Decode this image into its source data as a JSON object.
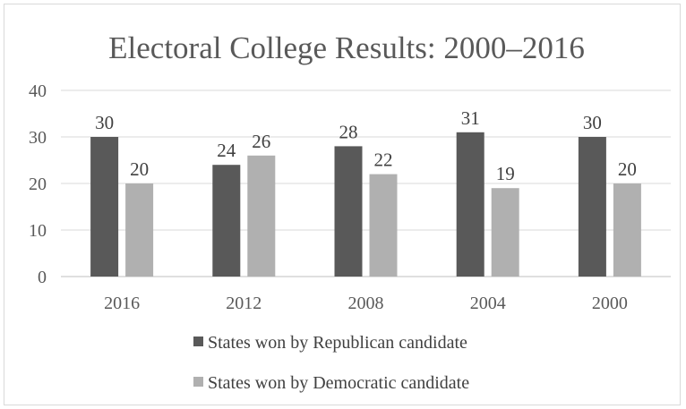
{
  "chart_data": {
    "type": "bar",
    "title": "Electoral College Results: 2000–2016",
    "categories": [
      "2016",
      "2012",
      "2008",
      "2004",
      "2000"
    ],
    "series": [
      {
        "name": "States won by Republican candidate",
        "values": [
          30,
          24,
          28,
          31,
          30
        ],
        "color": "#595959"
      },
      {
        "name": "States won by Democratic candidate",
        "values": [
          20,
          26,
          22,
          19,
          20
        ],
        "color": "#b0b0b0"
      }
    ],
    "ylim": [
      0,
      40
    ],
    "yticks": [
      "0",
      "10",
      "20",
      "30",
      "40"
    ],
    "grid": true,
    "legend_position": "bottom",
    "data_labels": true
  }
}
